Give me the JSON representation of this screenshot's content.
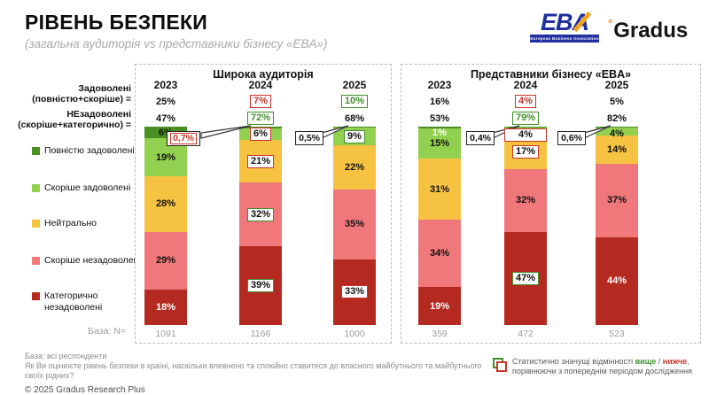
{
  "header": {
    "title": "РІВЕНЬ БЕЗПЕКИ",
    "subtitle": "(загальна аудиторія vs представники бізнесу «EBA»)"
  },
  "logos": {
    "eba_text": "EBA",
    "eba_sub": "European Business Association",
    "gradus_degree": "°",
    "gradus_text": "Gradus"
  },
  "aggregate_labels": {
    "satisfied_1": "Задоволені",
    "satisfied_2": "(повністю+скоріше) =",
    "unsatisfied_1": "НЕзадоволені",
    "unsatisfied_2": "(скоріше+категорично) ="
  },
  "legend": [
    {
      "label": "Повністю задоволені",
      "color": "#4a8f22"
    },
    {
      "label": "Скоріше задоволені",
      "color": "#92d050"
    },
    {
      "label": "Нейтрально",
      "color": "#f5c242"
    },
    {
      "label": "Скоріше незадоволені",
      "color": "#f0787a"
    },
    {
      "label": "Категорично незадоволені",
      "color": "#b42a20"
    }
  ],
  "base_row_label": "База: N=",
  "chart_data": {
    "type": "bar",
    "stacked": true,
    "unit": "%",
    "legend_position": "left",
    "segments_order": [
      "fully_satisfied",
      "rather_satisfied",
      "neutral",
      "rather_unsatisfied",
      "categorically_unsatisfied"
    ],
    "colors": {
      "fully_satisfied": "#4a8f22",
      "rather_satisfied": "#92d050",
      "neutral": "#f5c242",
      "rather_unsatisfied": "#f0787a",
      "categorically_unsatisfied": "#b42a20"
    },
    "mark_colors": {
      "higher": "#3f8f29",
      "lower": "#c8342a"
    },
    "panels": [
      {
        "title": "Широка аудиторія",
        "columns": [
          {
            "year": "2023",
            "satisfied_total": {
              "text": "25%",
              "mark": "none"
            },
            "unsatisfied_total": {
              "text": "47%",
              "mark": "none"
            },
            "base": "1091",
            "segments": [
              {
                "value": 6,
                "label": "6%",
                "mark": "none"
              },
              {
                "value": 19,
                "label": "19%",
                "mark": "none"
              },
              {
                "value": 28,
                "label": "28%",
                "mark": "none"
              },
              {
                "value": 29,
                "label": "29%",
                "mark": "none"
              },
              {
                "value": 18,
                "label": "18%",
                "mark": "none",
                "white": true
              }
            ]
          },
          {
            "year": "2024",
            "satisfied_total": {
              "text": "7%",
              "mark": "lower"
            },
            "unsatisfied_total": {
              "text": "72%",
              "mark": "higher"
            },
            "base": "1166",
            "callout": {
              "text": "0,7%",
              "mark": "lower",
              "far": true
            },
            "segments": [
              {
                "value": 0.7,
                "label": null,
                "mark": "lower"
              },
              {
                "value": 6,
                "label": "6%",
                "mark": "lower"
              },
              {
                "value": 21,
                "label": "21%",
                "mark": "lower"
              },
              {
                "value": 32,
                "label": "32%",
                "mark": "higher"
              },
              {
                "value": 39,
                "label": "39%",
                "mark": "higher"
              }
            ]
          },
          {
            "year": "2025",
            "satisfied_total": {
              "text": "10%",
              "mark": "higher"
            },
            "unsatisfied_total": {
              "text": "68%",
              "mark": "none"
            },
            "base": "1000",
            "callout": {
              "text": "0,5%",
              "mark": "neutral",
              "far": false
            },
            "segments": [
              {
                "value": 0.5,
                "label": null,
                "mark": "none"
              },
              {
                "value": 9,
                "label": "9%",
                "mark": "higher"
              },
              {
                "value": 22,
                "label": "22%",
                "mark": "none"
              },
              {
                "value": 35,
                "label": "35%",
                "mark": "none"
              },
              {
                "value": 33,
                "label": "33%",
                "mark": "lower"
              }
            ]
          }
        ]
      },
      {
        "title": "Представники бізнесу «EBA»",
        "columns": [
          {
            "year": "2023",
            "satisfied_total": {
              "text": "16%",
              "mark": "none"
            },
            "unsatisfied_total": {
              "text": "53%",
              "mark": "none"
            },
            "base": "359",
            "segments": [
              {
                "value": 1,
                "label": "1%",
                "mark": "none",
                "white": true
              },
              {
                "value": 15,
                "label": "15%",
                "mark": "none"
              },
              {
                "value": 31,
                "label": "31%",
                "mark": "none"
              },
              {
                "value": 34,
                "label": "34%",
                "mark": "none"
              },
              {
                "value": 19,
                "label": "19%",
                "mark": "none",
                "white": true
              }
            ]
          },
          {
            "year": "2024",
            "satisfied_total": {
              "text": "4%",
              "mark": "lower"
            },
            "unsatisfied_total": {
              "text": "79%",
              "mark": "higher"
            },
            "base": "472",
            "callout": {
              "text": "0,4%",
              "mark": "neutral",
              "far": false
            },
            "segments": [
              {
                "value": 0.4,
                "label": null,
                "mark": "none"
              },
              {
                "value": 4,
                "label": "4%",
                "mark": "lower"
              },
              {
                "value": 17,
                "label": "17%",
                "mark": "lower"
              },
              {
                "value": 32,
                "label": "32%",
                "mark": "none"
              },
              {
                "value": 47,
                "label": "47%",
                "mark": "higher"
              }
            ]
          },
          {
            "year": "2025",
            "satisfied_total": {
              "text": "5%",
              "mark": "none"
            },
            "unsatisfied_total": {
              "text": "82%",
              "mark": "none"
            },
            "base": "523",
            "callout": {
              "text": "0,6%",
              "mark": "neutral",
              "far": false
            },
            "segments": [
              {
                "value": 0.6,
                "label": null,
                "mark": "none"
              },
              {
                "value": 4,
                "label": "4%",
                "mark": "none"
              },
              {
                "value": 14,
                "label": "14%",
                "mark": "none"
              },
              {
                "value": 37,
                "label": "37%",
                "mark": "none"
              },
              {
                "value": 44,
                "label": "44%",
                "mark": "none",
                "white": true
              }
            ]
          }
        ]
      }
    ]
  },
  "footer": {
    "base_note": "База: всі респонденти",
    "question": "Як Ви оцінюєте рівень безпеки в країні, наскільки впевнено та спокійно ставитеся до власного майбутнього та майбутнього своїх рідних?",
    "copyright": "© 2025 Gradus Research Plus"
  },
  "signif_note": {
    "prefix": "Статистично значущі відмінності ",
    "higher_word": "вище",
    "separator": " / ",
    "lower_word": "нижче",
    "suffix": ",",
    "line2": "порівнюючи з попереднім періодом дослідження"
  }
}
